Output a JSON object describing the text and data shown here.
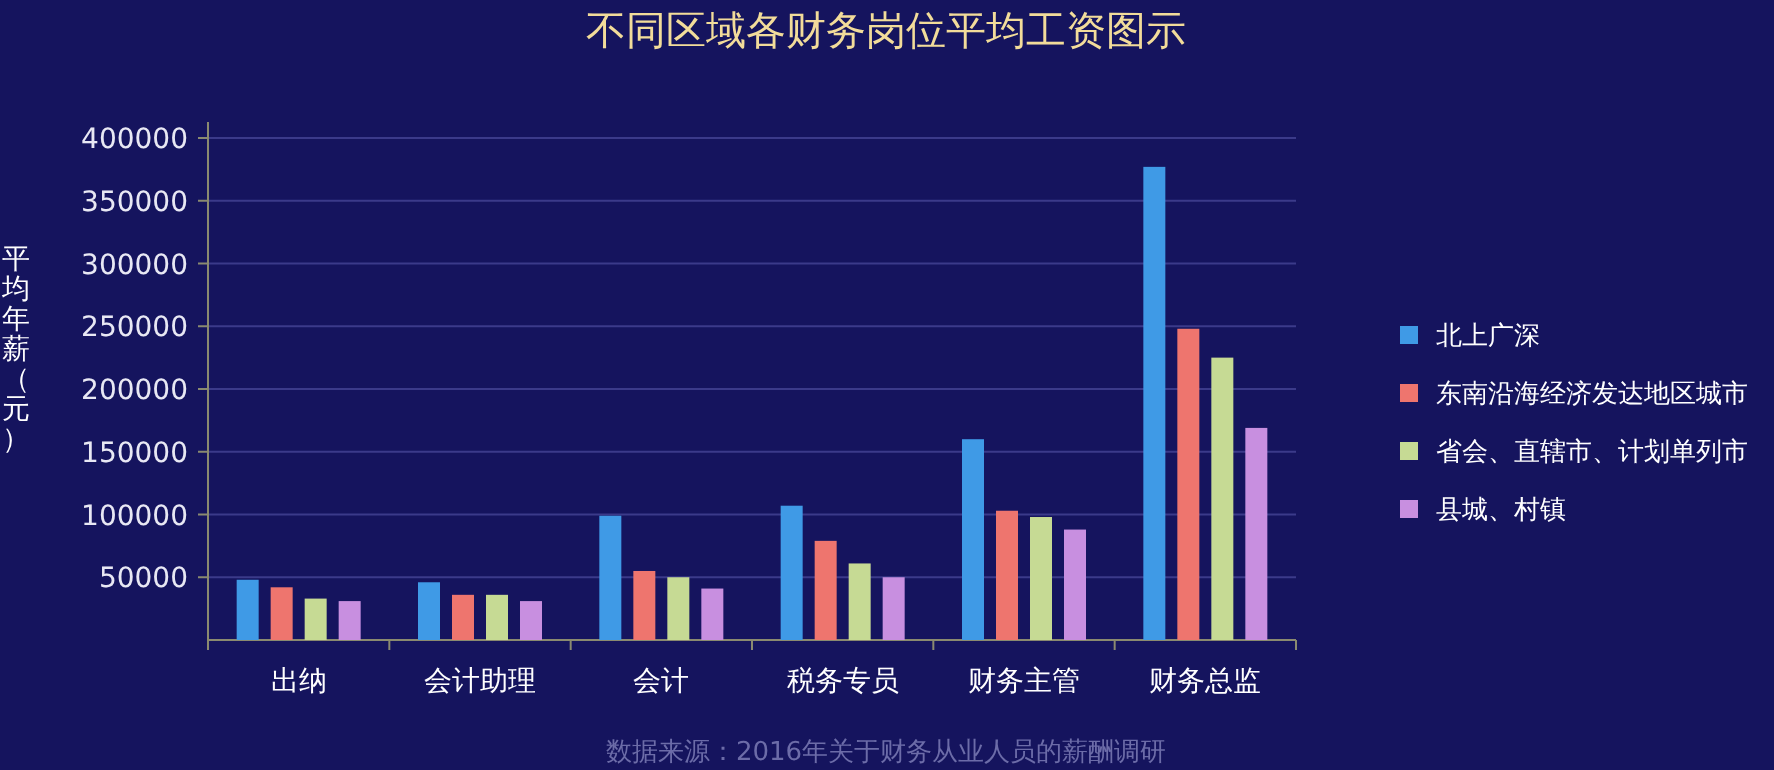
{
  "chart_data": {
    "type": "bar",
    "title": "不同区域各财务岗位平均工资图示",
    "ylabel": "平均年薪（元）",
    "categories": [
      "出纳",
      "会计助理",
      "会计",
      "税务专员",
      "财务主管",
      "财务总监"
    ],
    "series": [
      {
        "name": "北上广深",
        "color": "#3f9ae6",
        "values": [
          48000,
          46000,
          99000,
          107000,
          160000,
          377000
        ]
      },
      {
        "name": "东南沿海经济发达地区城市",
        "color": "#ee756e",
        "values": [
          42000,
          36000,
          55000,
          79000,
          103000,
          248000
        ]
      },
      {
        "name": "省会、直辖市、计划单列市",
        "color": "#c6da94",
        "values": [
          33000,
          36000,
          50000,
          61000,
          98000,
          225000
        ]
      },
      {
        "name": "县城、村镇",
        "color": "#c88fe0",
        "values": [
          31000,
          31000,
          41000,
          50000,
          88000,
          169000
        ]
      }
    ],
    "ylim": [
      0,
      400000
    ],
    "yticks": [
      50000,
      100000,
      150000,
      200000,
      250000,
      300000,
      350000,
      400000
    ],
    "grid": "y",
    "legend": "right",
    "annotations": [
      "数据来源：2016年关于财务从业人员的薪酬调研"
    ]
  }
}
